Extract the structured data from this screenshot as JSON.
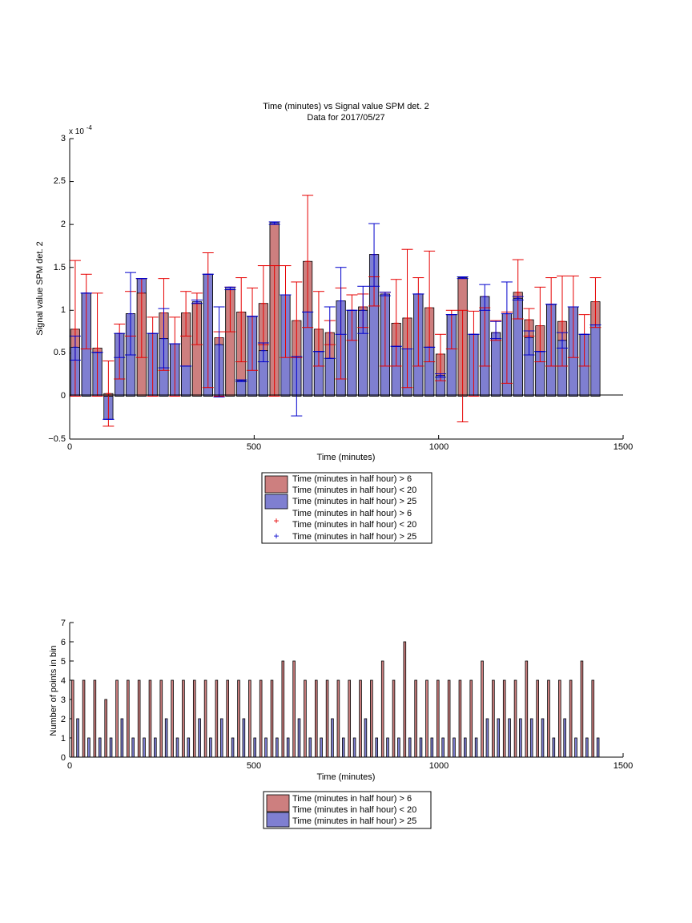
{
  "chart_data": [
    {
      "type": "bar",
      "title": "Time (minutes) vs Signal value SPM det. 2",
      "subtitle": "Data for 2017/05/27",
      "xlabel": "Time (minutes)",
      "ylabel": "Signal value SPM det. 2",
      "y_exponent_label": "x 10",
      "y_exponent_power": "-4",
      "xlim": [
        0,
        1500
      ],
      "ylim": [
        -0.5,
        3
      ],
      "x_ticks": [
        "0",
        "500",
        "1000",
        "1500"
      ],
      "y_ticks": [
        "−0.5",
        "0",
        "0.5",
        "1",
        "1.5",
        "2",
        "2.5",
        "3"
      ],
      "bin_width": 30,
      "colors": {
        "red": "#cd7f7f",
        "blue": "#7f7fd1",
        "red_err": "#e60000",
        "blue_err": "#0000cc"
      },
      "series": [
        {
          "name": "Time (minutes in half hour) > 6 Time (minutes in half hour) < 20",
          "x": [
            15,
            45,
            75,
            105,
            135,
            165,
            195,
            225,
            255,
            285,
            315,
            345,
            375,
            405,
            435,
            465,
            495,
            525,
            555,
            585,
            615,
            645,
            675,
            705,
            735,
            765,
            795,
            825,
            855,
            885,
            915,
            945,
            975,
            1005,
            1035,
            1065,
            1095,
            1125,
            1155,
            1185,
            1215,
            1245,
            1275,
            1305,
            1335,
            1365,
            1395,
            1425
          ],
          "values": [
            0.78,
            1.2,
            0.56,
            0.03,
            0.73,
            0.96,
            1.2,
            0.73,
            0.97,
            0.61,
            0.97,
            1.08,
            1.42,
            0.68,
            1.24,
            0.98,
            0.93,
            1.08,
            2.0,
            1.18,
            0.88,
            1.57,
            0.78,
            0.74,
            1.11,
            1.0,
            1.04,
            1.65,
            1.19,
            0.85,
            0.91,
            1.19,
            1.03,
            0.49,
            0.95,
            1.37,
            0.72,
            1.16,
            0.74,
            0.96,
            1.21,
            0.89,
            0.82,
            1.07,
            0.87,
            1.04,
            0.72,
            1.1
          ],
          "err_low": [
            0.0,
            0.55,
            0.0,
            -0.35,
            0.2,
            0.7,
            0.45,
            0.0,
            0.3,
            0.0,
            0.7,
            0.6,
            0.1,
            0.0,
            0.75,
            0.4,
            0.3,
            0.6,
            0.0,
            0.45,
            0.45,
            0.8,
            0.35,
            0.6,
            0.2,
            0.65,
            0.8,
            1.05,
            0.35,
            0.35,
            0.1,
            0.35,
            0.4,
            0.18,
            0.55,
            -0.3,
            0.0,
            0.35,
            0.65,
            0.15,
            0.9,
            0.7,
            0.4,
            0.35,
            0.35,
            0.45,
            0.35,
            0.8
          ],
          "err_high": [
            1.58,
            1.42,
            1.2,
            0.41,
            0.84,
            1.22,
            1.37,
            0.92,
            1.37,
            0.92,
            1.22,
            1.2,
            1.67,
            0.75,
            1.27,
            1.38,
            1.26,
            1.52,
            1.52,
            1.52,
            1.33,
            2.34,
            1.22,
            0.88,
            1.26,
            1.18,
            1.19,
            1.39,
            1.21,
            1.36,
            1.71,
            1.38,
            1.69,
            0.72,
            1.0,
            1.0,
            0.99,
            1.03,
            0.88,
            0.98,
            1.59,
            1.02,
            1.27,
            1.38,
            1.4,
            1.4,
            0.95,
            1.38
          ]
        },
        {
          "name": "Time (minutes in half hour) > 25",
          "x": [
            15,
            45,
            75,
            105,
            135,
            165,
            195,
            225,
            255,
            285,
            315,
            345,
            375,
            405,
            435,
            465,
            495,
            525,
            555,
            585,
            615,
            645,
            675,
            705,
            735,
            765,
            795,
            825,
            855,
            885,
            915,
            945,
            975,
            1005,
            1035,
            1065,
            1095,
            1125,
            1155,
            1185,
            1215,
            1245,
            1275,
            1305,
            1335,
            1365,
            1395,
            1425
          ],
          "values": [
            0.57,
            1.2,
            0.51,
            -0.27,
            0.73,
            0.96,
            1.37,
            0.73,
            0.67,
            0.61,
            0.35,
            1.1,
            1.42,
            0.6,
            1.27,
            0.18,
            0.93,
            0.53,
            2.02,
            1.18,
            0.46,
            0.98,
            0.52,
            0.44,
            1.11,
            1.0,
            1.0,
            1.65,
            1.19,
            0.58,
            0.55,
            1.19,
            0.57,
            0.24,
            0.95,
            1.38,
            0.72,
            1.16,
            0.74,
            0.96,
            1.14,
            0.68,
            0.52,
            1.07,
            0.65,
            1.04,
            0.72,
            0.83
          ],
          "err_low": [
            0.42,
            1.2,
            0.51,
            -0.27,
            0.45,
            0.48,
            1.37,
            0.73,
            0.33,
            0.61,
            0.35,
            1.08,
            1.42,
            -0.01,
            1.24,
            0.17,
            0.93,
            0.4,
            2.0,
            1.18,
            -0.23,
            0.98,
            0.52,
            0.44,
            0.72,
            1.0,
            0.73,
            1.28,
            1.17,
            0.58,
            0.55,
            1.19,
            0.57,
            0.22,
            0.95,
            1.37,
            0.72,
            1.0,
            0.67,
            0.96,
            1.12,
            0.48,
            0.52,
            1.07,
            0.56,
            1.04,
            0.72,
            0.83
          ],
          "err_high": [
            0.7,
            1.2,
            0.51,
            -0.27,
            0.73,
            1.44,
            1.37,
            0.73,
            1.02,
            0.61,
            0.35,
            1.12,
            1.42,
            1.04,
            1.27,
            0.19,
            0.93,
            0.62,
            2.03,
            1.18,
            0.46,
            0.98,
            0.52,
            1.04,
            1.5,
            1.0,
            1.28,
            2.01,
            1.21,
            0.58,
            0.55,
            1.19,
            0.57,
            0.26,
            0.95,
            1.39,
            0.72,
            1.3,
            0.87,
            1.33,
            1.16,
            0.76,
            0.52,
            1.07,
            0.74,
            1.04,
            0.72,
            0.83
          ]
        }
      ],
      "legend": {
        "placement": "below",
        "entries": [
          {
            "label_lines": [
              "Time (minutes in half hour) > 6",
              "Time (minutes in half hour) < 20"
            ],
            "marker": "patch",
            "color": "#cd7f7f"
          },
          {
            "label_lines": [
              "Time (minutes in half hour) > 25"
            ],
            "marker": "patch",
            "color": "#7f7fd1"
          },
          {
            "label_lines": [
              "Time (minutes in half hour) > 6",
              "Time (minutes in half hour) < 20"
            ],
            "marker": "+",
            "color": "#e60000"
          },
          {
            "label_lines": [
              "Time (minutes in half hour) > 25"
            ],
            "marker": "+",
            "color": "#0000cc"
          }
        ]
      }
    },
    {
      "type": "bar",
      "title": "",
      "xlabel": "Time (minutes)",
      "ylabel": "Number of points in bin",
      "xlim": [
        0,
        1500
      ],
      "ylim": [
        0,
        7
      ],
      "x_ticks": [
        "0",
        "500",
        "1000",
        "1500"
      ],
      "y_ticks": [
        "0",
        "1",
        "2",
        "3",
        "4",
        "5",
        "6",
        "7"
      ],
      "bin_width": 30,
      "colors": {
        "red": "#cd7f7f",
        "blue": "#7f7fd1"
      },
      "series": [
        {
          "name": "Time (minutes in half hour) > 6 Time (minutes in half hour) < 20",
          "x": [
            15,
            45,
            75,
            105,
            135,
            165,
            195,
            225,
            255,
            285,
            315,
            345,
            375,
            405,
            435,
            465,
            495,
            525,
            555,
            585,
            615,
            645,
            675,
            705,
            735,
            765,
            795,
            825,
            855,
            885,
            915,
            945,
            975,
            1005,
            1035,
            1065,
            1095,
            1125,
            1155,
            1185,
            1215,
            1245,
            1275,
            1305,
            1335,
            1365,
            1395,
            1425
          ],
          "values": [
            4,
            4,
            4,
            3,
            4,
            4,
            4,
            4,
            4,
            4,
            4,
            4,
            4,
            4,
            4,
            4,
            4,
            4,
            4,
            5,
            5,
            4,
            4,
            4,
            4,
            4,
            4,
            4,
            5,
            4,
            6,
            4,
            4,
            4,
            4,
            4,
            4,
            5,
            4,
            4,
            4,
            5,
            4,
            4,
            4,
            4,
            5,
            4
          ]
        },
        {
          "name": "Time (minutes in half hour) > 25",
          "x": [
            15,
            45,
            75,
            105,
            135,
            165,
            195,
            225,
            255,
            285,
            315,
            345,
            375,
            405,
            435,
            465,
            495,
            525,
            555,
            585,
            615,
            645,
            675,
            705,
            735,
            765,
            795,
            825,
            855,
            885,
            915,
            945,
            975,
            1005,
            1035,
            1065,
            1095,
            1125,
            1155,
            1185,
            1215,
            1245,
            1275,
            1305,
            1335,
            1365,
            1395,
            1425
          ],
          "values": [
            2,
            1,
            1,
            1,
            2,
            1,
            1,
            1,
            2,
            1,
            1,
            2,
            1,
            2,
            1,
            2,
            1,
            1,
            1,
            1,
            2,
            1,
            1,
            2,
            1,
            1,
            2,
            1,
            1,
            1,
            1,
            1,
            1,
            1,
            1,
            1,
            1,
            2,
            2,
            2,
            2,
            2,
            2,
            1,
            2,
            1,
            1,
            1
          ]
        }
      ],
      "legend": {
        "placement": "below",
        "entries": [
          {
            "label_lines": [
              "Time (minutes in half hour) > 6",
              "Time (minutes in half hour) < 20"
            ],
            "marker": "patch",
            "color": "#cd7f7f"
          },
          {
            "label_lines": [
              "Time (minutes in half hour) > 25"
            ],
            "marker": "patch",
            "color": "#7f7fd1"
          }
        ]
      }
    }
  ]
}
